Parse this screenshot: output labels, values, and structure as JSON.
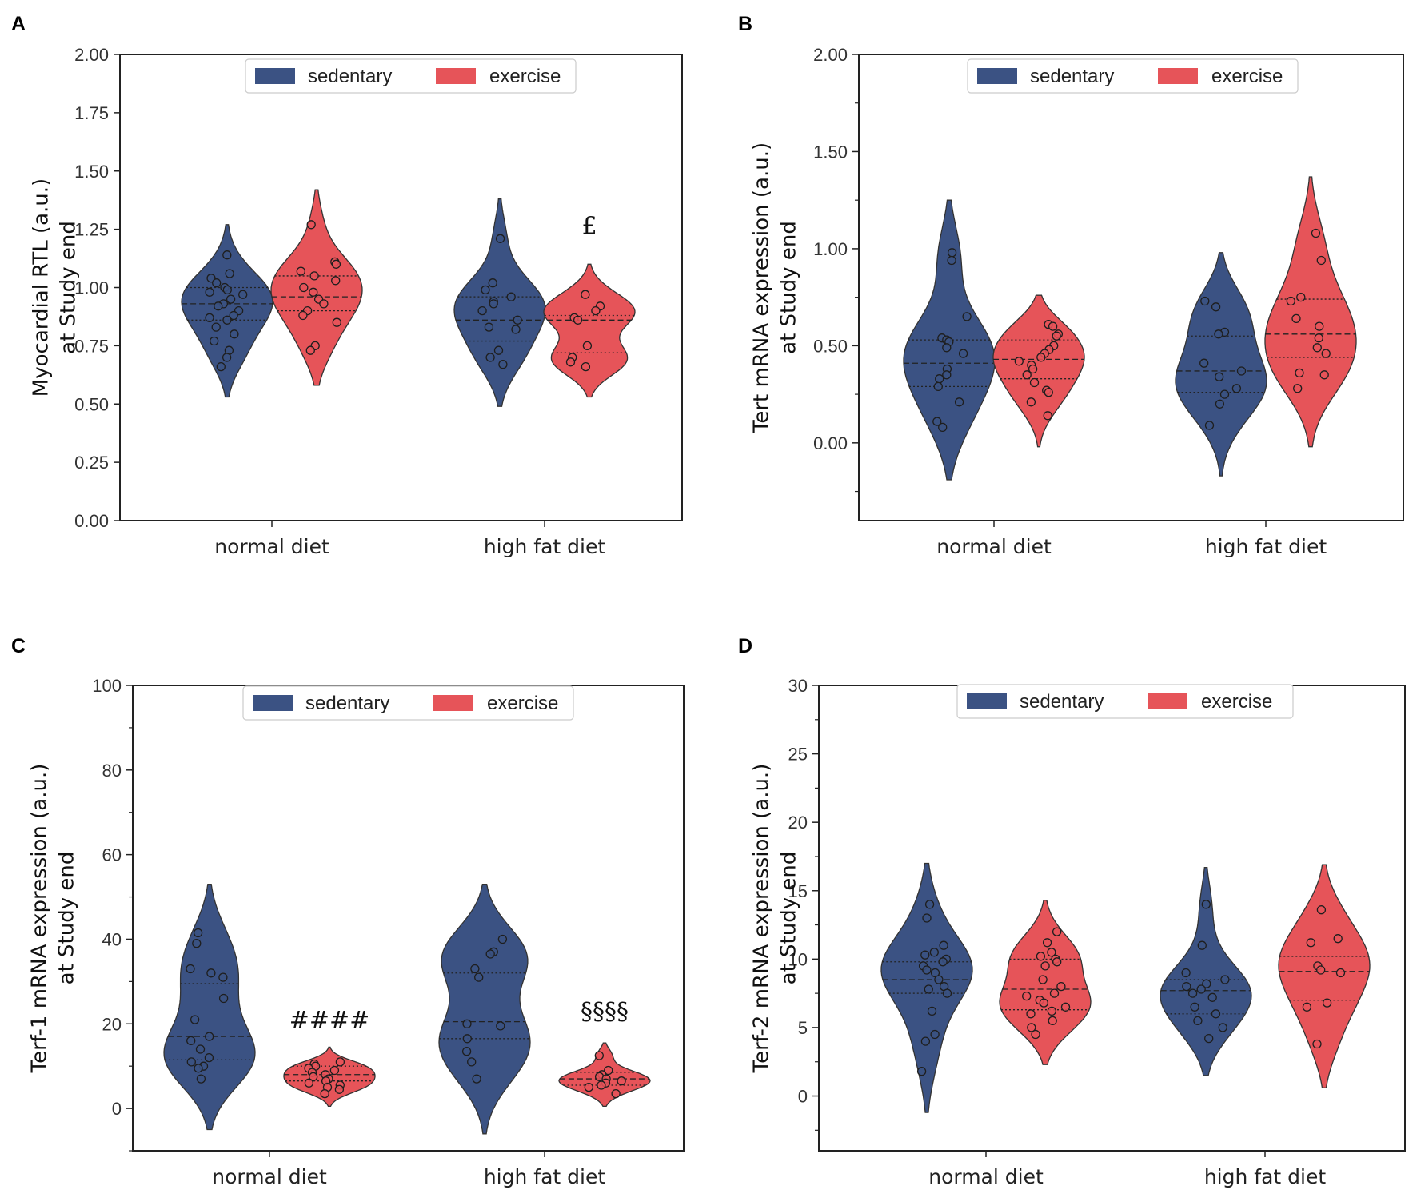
{
  "colors": {
    "sedentary": "#3b5283",
    "exercise": "#e65459",
    "point_edge": "#1e1e1e",
    "frame": "#222222"
  },
  "legend": {
    "sedentary": "sedentary",
    "exercise": "exercise"
  },
  "chart_data": [
    {
      "panel": "A",
      "type": "violin",
      "ylabel_line1": "Myocardial RTL (a.u.)",
      "ylabel_line2": "at Study end",
      "ylim": [
        0,
        2
      ],
      "yticks": [
        0,
        0.25,
        0.5,
        0.75,
        1.0,
        1.25,
        1.5,
        1.75,
        2.0
      ],
      "ytick_labels": [
        "0.00",
        "0.25",
        "0.50",
        "0.75",
        "1.00",
        "1.25",
        "1.50",
        "1.75",
        "2.00"
      ],
      "categories": [
        "normal diet",
        "high fat diet"
      ],
      "groups": [
        {
          "category": 0,
          "series": "sedentary",
          "quartiles": [
            0.86,
            0.93,
            1.0
          ],
          "range": [
            0.53,
            1.27
          ],
          "points": [
            1.14,
            1.06,
            1.04,
            1.02,
            1.0,
            0.99,
            0.98,
            0.97,
            0.95,
            0.93,
            0.92,
            0.9,
            0.88,
            0.87,
            0.86,
            0.83,
            0.8,
            0.77,
            0.73,
            0.7,
            0.66
          ]
        },
        {
          "category": 0,
          "series": "exercise",
          "quartiles": [
            0.9,
            0.96,
            1.05
          ],
          "range": [
            0.58,
            1.42
          ],
          "points": [
            1.27,
            1.11,
            1.1,
            1.07,
            1.05,
            1.03,
            1.0,
            0.98,
            0.95,
            0.93,
            0.9,
            0.88,
            0.85,
            0.75,
            0.73
          ]
        },
        {
          "category": 1,
          "series": "sedentary",
          "quartiles": [
            0.77,
            0.86,
            0.96
          ],
          "range": [
            0.49,
            1.38
          ],
          "points": [
            1.21,
            1.02,
            0.99,
            0.96,
            0.94,
            0.93,
            0.9,
            0.86,
            0.83,
            0.82,
            0.73,
            0.7,
            0.67
          ]
        },
        {
          "category": 1,
          "series": "exercise",
          "quartiles": [
            0.72,
            0.86,
            0.88
          ],
          "range": [
            0.53,
            1.1
          ],
          "points": [
            0.97,
            0.92,
            0.9,
            0.87,
            0.86,
            0.75,
            0.7,
            0.68,
            0.66
          ]
        }
      ],
      "annotations": [
        {
          "text": "£",
          "category": 1,
          "series": "exercise",
          "y": 1.23
        }
      ]
    },
    {
      "panel": "B",
      "type": "violin",
      "ylabel_line1": "Tert mRNA expression (a.u.)",
      "ylabel_line2": "at Study end",
      "ylim": [
        -0.4,
        2.0
      ],
      "yticks": [
        0,
        0.5,
        1.0,
        1.5,
        2.0
      ],
      "ytick_labels": [
        "0.00",
        "0.50",
        "1.00",
        "1.50",
        "2.00"
      ],
      "minor_yticks": [
        -0.25,
        0.25,
        0.75,
        1.25,
        1.75
      ],
      "categories": [
        "normal diet",
        "high fat diet"
      ],
      "groups": [
        {
          "category": 0,
          "series": "sedentary",
          "quartiles": [
            0.29,
            0.41,
            0.53
          ],
          "range": [
            -0.19,
            1.25
          ],
          "points": [
            0.98,
            0.94,
            0.65,
            0.54,
            0.53,
            0.52,
            0.49,
            0.46,
            0.38,
            0.35,
            0.33,
            0.29,
            0.21,
            0.11,
            0.08
          ]
        },
        {
          "category": 0,
          "series": "exercise",
          "quartiles": [
            0.33,
            0.43,
            0.53
          ],
          "range": [
            -0.02,
            0.76
          ],
          "points": [
            0.61,
            0.6,
            0.56,
            0.55,
            0.5,
            0.48,
            0.46,
            0.44,
            0.42,
            0.4,
            0.38,
            0.35,
            0.31,
            0.27,
            0.26,
            0.21,
            0.14
          ]
        },
        {
          "category": 1,
          "series": "sedentary",
          "quartiles": [
            0.26,
            0.37,
            0.55
          ],
          "range": [
            -0.17,
            0.98
          ],
          "points": [
            0.73,
            0.7,
            0.57,
            0.56,
            0.41,
            0.37,
            0.34,
            0.28,
            0.25,
            0.2,
            0.09
          ]
        },
        {
          "category": 1,
          "series": "exercise",
          "quartiles": [
            0.44,
            0.56,
            0.74
          ],
          "range": [
            -0.02,
            1.37
          ],
          "points": [
            1.08,
            0.94,
            0.75,
            0.73,
            0.64,
            0.6,
            0.54,
            0.49,
            0.46,
            0.36,
            0.35,
            0.28
          ]
        }
      ],
      "annotations": []
    },
    {
      "panel": "C",
      "type": "violin",
      "ylabel_line1": "Terf-1 mRNA expression (a.u.)",
      "ylabel_line2": "at Study end",
      "ylim": [
        -10,
        100
      ],
      "yticks": [
        0,
        20,
        40,
        60,
        80,
        100
      ],
      "ytick_labels": [
        "0",
        "20",
        "40",
        "60",
        "80",
        "100"
      ],
      "minor_yticks": [
        -10,
        10,
        30,
        50,
        70,
        90
      ],
      "categories": [
        "normal diet",
        "high fat diet"
      ],
      "groups": [
        {
          "category": 0,
          "series": "sedentary",
          "quartiles": [
            11.5,
            17.0,
            29.5
          ],
          "range": [
            -5,
            53
          ],
          "points": [
            41.5,
            39,
            33,
            32,
            31,
            26,
            21,
            17,
            16,
            14,
            12,
            11,
            10,
            9.5,
            7
          ]
        },
        {
          "category": 0,
          "series": "exercise",
          "quartiles": [
            6.5,
            8.0,
            10.0
          ],
          "range": [
            0.5,
            14.5
          ],
          "points": [
            11,
            10.5,
            10,
            9.5,
            9,
            8.5,
            8,
            7.5,
            7,
            6.5,
            6,
            5.5,
            5,
            4.5,
            3.5
          ]
        },
        {
          "category": 1,
          "series": "sedentary",
          "quartiles": [
            16.5,
            20.5,
            32.0
          ],
          "range": [
            -6,
            53
          ],
          "points": [
            40,
            37,
            36.5,
            33,
            31,
            20,
            19.5,
            16.5,
            13.5,
            11,
            7
          ]
        },
        {
          "category": 1,
          "series": "exercise",
          "quartiles": [
            5.5,
            7.0,
            8.5
          ],
          "range": [
            0.5,
            15.5
          ],
          "points": [
            12.5,
            9,
            8,
            7.5,
            7,
            6.5,
            6,
            5.5,
            5,
            3.5
          ]
        }
      ],
      "annotations": [
        {
          "text": "####",
          "category": 0,
          "series": "exercise",
          "y": 19
        },
        {
          "text": "§§§§",
          "category": 1,
          "series": "exercise",
          "y": 21
        }
      ]
    },
    {
      "panel": "D",
      "type": "violin",
      "ylabel_line1": "Terf-2 mRNA expression (a.u.)",
      "ylabel_line2": "at Study end",
      "ylim": [
        -4,
        30
      ],
      "yticks": [
        0,
        5,
        10,
        15,
        20,
        25,
        30
      ],
      "ytick_labels": [
        "0",
        "5",
        "10",
        "15",
        "20",
        "25",
        "30"
      ],
      "minor_yticks": [
        -2.5,
        2.5,
        7.5,
        12.5,
        17.5,
        22.5,
        27.5
      ],
      "categories": [
        "normal diet",
        "high fat diet"
      ],
      "groups": [
        {
          "category": 0,
          "series": "sedentary",
          "quartiles": [
            7.5,
            8.5,
            9.8
          ],
          "range": [
            -1.2,
            17
          ],
          "points": [
            14,
            13,
            11,
            10.5,
            10.3,
            10,
            9.8,
            9.5,
            9.2,
            9,
            8.5,
            8,
            7.8,
            7.5,
            6.2,
            4.5,
            4,
            1.8
          ]
        },
        {
          "category": 0,
          "series": "exercise",
          "quartiles": [
            6.3,
            7.8,
            10.0
          ],
          "range": [
            2.3,
            14.3
          ],
          "points": [
            12,
            11.2,
            10.5,
            10.2,
            10,
            9.8,
            9.5,
            8.5,
            8,
            7.5,
            7.3,
            7,
            6.8,
            6.5,
            6.2,
            6,
            5.5,
            5,
            4.5
          ]
        },
        {
          "category": 1,
          "series": "sedentary",
          "quartiles": [
            6.0,
            7.7,
            8.5
          ],
          "range": [
            1.5,
            16.7
          ],
          "points": [
            14,
            11,
            9,
            8.5,
            8.2,
            8,
            7.8,
            7.5,
            7.2,
            6.5,
            6,
            5.5,
            5,
            4.2
          ]
        },
        {
          "category": 1,
          "series": "exercise",
          "quartiles": [
            7.0,
            9.1,
            10.2
          ],
          "range": [
            0.6,
            16.9
          ],
          "points": [
            13.6,
            11.5,
            11.2,
            9.5,
            9.2,
            9,
            6.8,
            6.5,
            3.8
          ]
        }
      ],
      "annotations": []
    }
  ]
}
